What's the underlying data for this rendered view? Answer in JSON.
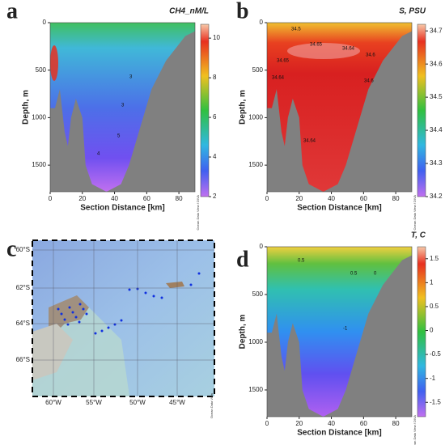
{
  "panels": [
    {
      "letter": "a",
      "title": "CH4_nM/L",
      "xlabel": "Section Distance [km]",
      "ylabel": "Depth, m",
      "xlim": [
        0,
        90
      ],
      "xticks": [
        0,
        20,
        40,
        60,
        80
      ],
      "ylim": [
        0,
        1780
      ],
      "yticks": [
        0,
        500,
        1000,
        1500
      ],
      "cblim": [
        2,
        10.7
      ],
      "cbticks": [
        2,
        4,
        6,
        8,
        10
      ],
      "watermark": "Ocean Data View / DIVA",
      "contour_labels": [
        "3",
        "3",
        "5",
        "4"
      ]
    },
    {
      "letter": "b",
      "title": "S, PSU",
      "xlabel": "Section Distance [km]",
      "ylabel": "Depth, m",
      "xlim": [
        0,
        90
      ],
      "xticks": [
        0,
        20,
        40,
        60,
        80
      ],
      "ylim": [
        0,
        1780
      ],
      "yticks": [
        0,
        500,
        1000,
        1500
      ],
      "cblim": [
        34.2,
        34.72
      ],
      "cbticks": [
        34.2,
        34.3,
        34.4,
        34.5,
        34.6,
        34.7
      ],
      "watermark": "Ocean Data View / DIVA",
      "contour_labels": [
        "34.5",
        "34.65",
        "34.64",
        "34.6",
        "34.65",
        "34.6",
        "34.64",
        "34.64"
      ]
    },
    {
      "letter": "c",
      "lon_labels": [
        "60°W",
        "55°W",
        "50°W",
        "45°W"
      ],
      "lat_labels": [
        "60°S",
        "62°S",
        "64°S",
        "66°S"
      ],
      "watermark": "Ocean Data View"
    },
    {
      "letter": "d",
      "title": "T, C",
      "xlabel": "Section Distance [km]",
      "ylabel": "Depth, m",
      "xlim": [
        0,
        90
      ],
      "xticks": [
        0,
        20,
        40,
        60,
        80
      ],
      "ylim": [
        0,
        1780
      ],
      "yticks": [
        0,
        500,
        1000,
        1500
      ],
      "cblim": [
        -1.8,
        1.75
      ],
      "cbticks": [
        -1.5,
        -1,
        -0.5,
        0,
        0.5,
        1,
        1.5
      ],
      "watermark": "Ocean Data View / DIVA",
      "contour_labels": [
        "0.5",
        "0.5",
        "0",
        "-1"
      ]
    }
  ]
}
